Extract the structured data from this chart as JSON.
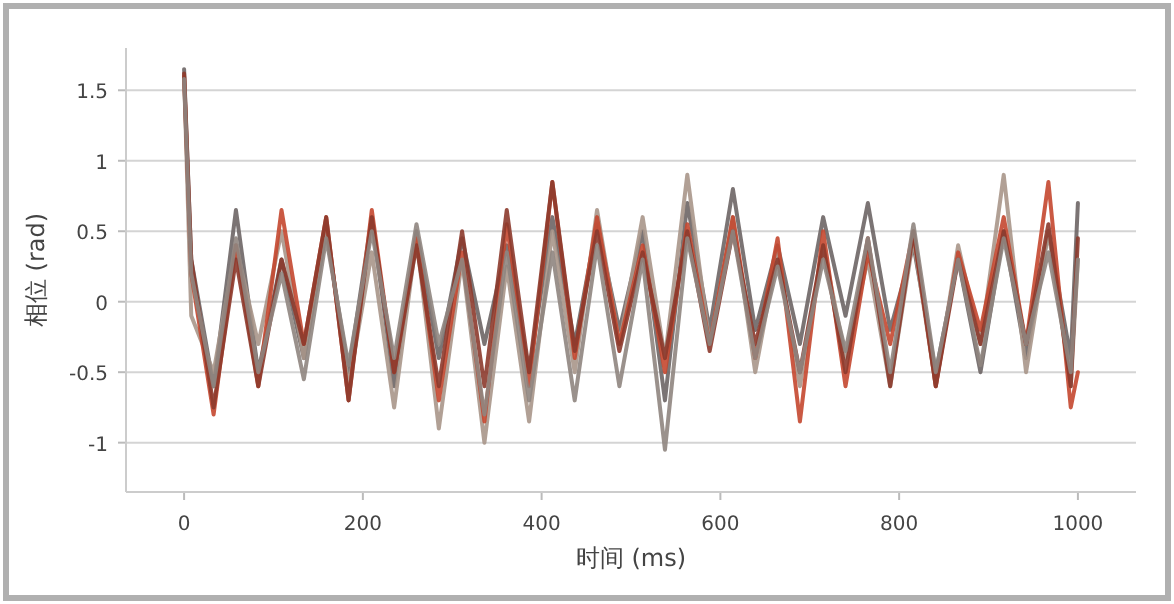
{
  "chart_data": {
    "type": "line",
    "xlabel": "时间 (ms)",
    "ylabel": "相位 (rad)",
    "x": [
      0,
      8,
      33,
      58,
      83,
      109,
      134,
      159,
      184,
      210,
      235,
      260,
      285,
      311,
      336,
      361,
      386,
      412,
      437,
      462,
      487,
      513,
      538,
      563,
      588,
      614,
      639,
      664,
      689,
      715,
      740,
      765,
      790,
      816,
      841,
      866,
      891,
      917,
      942,
      967,
      992,
      1000
    ],
    "series": [
      {
        "color": "#6d6565",
        "values": [
          1.65,
          0.3,
          -0.6,
          0.65,
          -0.5,
          0.3,
          -0.4,
          0.5,
          -0.5,
          0.6,
          -0.6,
          0.5,
          -0.4,
          0.45,
          -0.3,
          0.4,
          -0.5,
          0.6,
          -0.3,
          0.55,
          -0.2,
          0.5,
          -0.7,
          0.7,
          -0.2,
          0.8,
          -0.2,
          0.4,
          -0.3,
          0.6,
          -0.1,
          0.7,
          -0.2,
          0.4,
          -0.5,
          0.3,
          -0.5,
          0.5,
          -0.4,
          0.5,
          -0.4,
          0.7
        ]
      },
      {
        "color": "#a8968a",
        "values": [
          1.6,
          -0.1,
          -0.5,
          0.4,
          -0.3,
          0.5,
          -0.4,
          0.55,
          -0.6,
          0.35,
          -0.75,
          0.45,
          -0.9,
          0.3,
          -1.0,
          0.25,
          -0.85,
          0.5,
          -0.5,
          0.65,
          -0.3,
          0.6,
          -0.4,
          0.9,
          -0.3,
          0.6,
          -0.5,
          0.35,
          -0.6,
          0.4,
          -0.4,
          0.3,
          -0.6,
          0.45,
          -0.6,
          0.4,
          -0.3,
          0.9,
          -0.5,
          0.5,
          -0.6,
          0.3
        ]
      },
      {
        "color": "#c4472f",
        "values": [
          1.6,
          0.2,
          -0.8,
          0.4,
          -0.6,
          0.65,
          -0.3,
          0.6,
          -0.7,
          0.65,
          -0.5,
          0.45,
          -0.7,
          0.35,
          -0.85,
          0.55,
          -0.6,
          0.85,
          -0.4,
          0.6,
          -0.3,
          0.4,
          -0.5,
          0.55,
          -0.3,
          0.6,
          -0.4,
          0.45,
          -0.85,
          0.5,
          -0.6,
          0.35,
          -0.3,
          0.5,
          -0.6,
          0.35,
          -0.2,
          0.6,
          -0.3,
          0.85,
          -0.75,
          -0.5
        ]
      },
      {
        "color": "#8c3a2c",
        "values": [
          1.62,
          0.3,
          -0.75,
          0.3,
          -0.6,
          0.3,
          -0.3,
          0.6,
          -0.7,
          0.6,
          -0.5,
          0.4,
          -0.6,
          0.5,
          -0.6,
          0.65,
          -0.5,
          0.85,
          -0.35,
          0.5,
          -0.35,
          0.35,
          -0.4,
          0.5,
          -0.35,
          0.5,
          -0.3,
          0.3,
          -0.5,
          0.4,
          -0.5,
          0.45,
          -0.6,
          0.5,
          -0.6,
          0.3,
          -0.3,
          0.5,
          -0.3,
          0.55,
          -0.6,
          0.45
        ]
      },
      {
        "color": "#8f8580",
        "values": [
          1.58,
          0.2,
          -0.6,
          0.45,
          -0.5,
          0.2,
          -0.55,
          0.45,
          -0.45,
          0.5,
          -0.4,
          0.55,
          -0.3,
          0.3,
          -0.8,
          0.35,
          -0.7,
          0.35,
          -0.7,
          0.4,
          -0.6,
          0.3,
          -1.05,
          0.45,
          -0.3,
          0.5,
          -0.4,
          0.25,
          -0.5,
          0.3,
          -0.35,
          0.45,
          -0.5,
          0.55,
          -0.5,
          0.3,
          -0.45,
          0.45,
          -0.3,
          0.35,
          -0.5,
          0.3
        ]
      }
    ],
    "xlim": [
      -65,
      1065
    ],
    "ylim": [
      -1.35,
      1.8
    ],
    "xticks": [
      0,
      200,
      400,
      600,
      800,
      1000
    ],
    "yticks": [
      -1,
      -0.5,
      0,
      0.5,
      1,
      1.5
    ],
    "grid": "y",
    "line_style": "solid"
  }
}
